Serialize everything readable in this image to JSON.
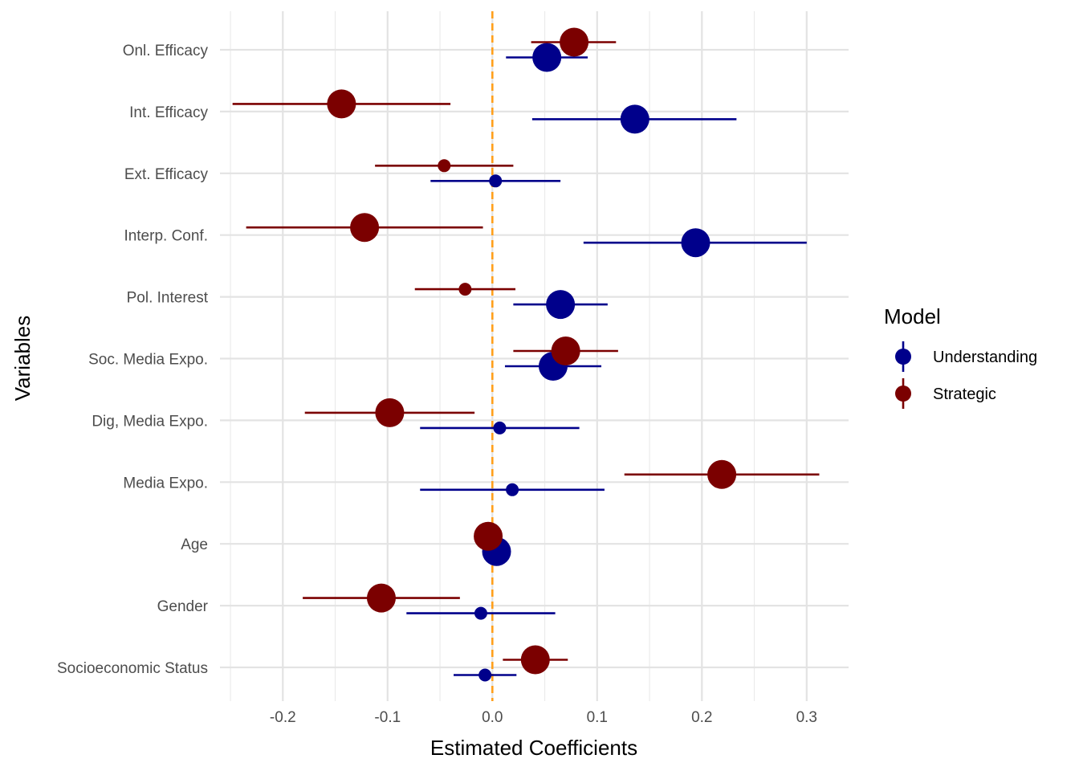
{
  "chart_data": {
    "type": "scatter",
    "title": "",
    "xlabel": "Estimated Coefficients",
    "ylabel": "Variables",
    "xlim": [
      -0.26,
      0.34
    ],
    "x_ticks": [
      -0.2,
      -0.1,
      0.0,
      0.1,
      0.2,
      0.3
    ],
    "x_tick_labels": [
      "-0.2",
      "-0.1",
      "0.0",
      "0.1",
      "0.2",
      "0.3"
    ],
    "grid": true,
    "legend": {
      "title": "Model",
      "position": "right"
    },
    "reference_line": {
      "x": 0,
      "color": "#FF9F1C",
      "style": "dashed"
    },
    "categories": [
      "Onl. Efficacy",
      "Int. Efficacy",
      "Ext. Efficacy",
      "Interp. Conf.",
      "Pol. Interest",
      "Soc. Media Expo.",
      "Dig, Media Expo.",
      "Media Expo.",
      "Age",
      "Gender",
      "Socioeconomic Status"
    ],
    "series": [
      {
        "name": "Understanding",
        "color": "#00008B",
        "estimate": [
          0.052,
          0.136,
          0.003,
          0.194,
          0.065,
          0.058,
          0.007,
          0.019,
          0.004,
          -0.011,
          -0.007
        ],
        "ci_low": [
          0.013,
          0.038,
          -0.059,
          0.087,
          0.02,
          0.012,
          -0.069,
          -0.069,
          0.004,
          -0.082,
          -0.037
        ],
        "ci_high": [
          0.091,
          0.233,
          0.065,
          0.3,
          0.11,
          0.104,
          0.083,
          0.107,
          0.004,
          0.06,
          0.023
        ],
        "size": [
          3,
          3,
          1,
          3,
          3,
          3,
          1,
          1,
          3,
          1,
          1
        ]
      },
      {
        "name": "Strategic",
        "color": "#7B0000",
        "estimate": [
          0.078,
          -0.144,
          -0.046,
          -0.122,
          -0.026,
          0.07,
          -0.098,
          0.219,
          -0.004,
          -0.106,
          0.041
        ],
        "ci_low": [
          0.037,
          -0.248,
          -0.112,
          -0.235,
          -0.074,
          0.02,
          -0.179,
          0.126,
          -0.004,
          -0.181,
          0.01
        ],
        "ci_high": [
          0.118,
          -0.04,
          0.02,
          -0.009,
          0.022,
          0.12,
          -0.017,
          0.312,
          -0.004,
          -0.031,
          0.072
        ],
        "size": [
          3,
          3,
          1,
          3,
          1,
          3,
          3,
          3,
          3,
          3,
          3
        ]
      }
    ]
  }
}
